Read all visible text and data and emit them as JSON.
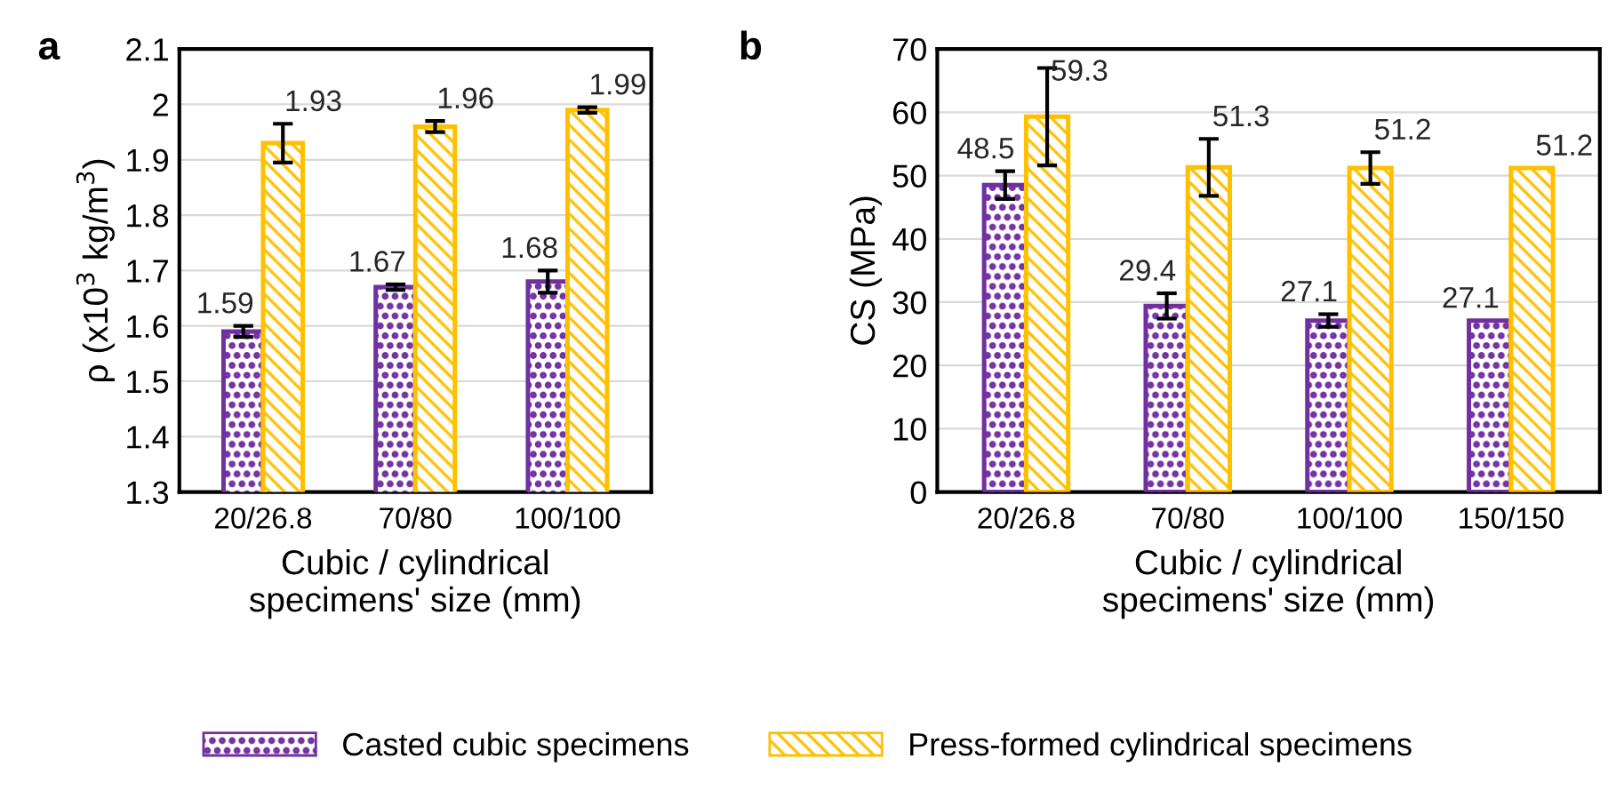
{
  "chart_data": [
    {
      "type": "bar",
      "title": "a",
      "xlabel": "Cubic / cylindrical\nspecimens' size (mm)",
      "ylabel": "ρ (x10$^{3}$ kg/m$^{3}$)",
      "categories": [
        "20/26.8",
        "70/80",
        "100/100"
      ],
      "ylim": [
        1.3,
        2.1
      ],
      "yticks": [
        1.3,
        1.4,
        1.5,
        1.6,
        1.7,
        1.8,
        1.9,
        2.0,
        2.1
      ],
      "grid": "y",
      "data_labels": true,
      "legend": "bottom",
      "series": [
        {
          "name": "Casted cubic specimens",
          "color": "#7030a0",
          "values": [
            1.59,
            1.67,
            1.68
          ],
          "errors": [
            0.01,
            0.005,
            0.02
          ]
        },
        {
          "name": "Press-formed cylindrical specimens",
          "color": "#ffc000",
          "values": [
            1.93,
            1.96,
            1.99
          ],
          "errors": [
            0.035,
            0.01,
            0.005
          ]
        }
      ]
    },
    {
      "type": "bar",
      "title": "b",
      "xlabel": "Cubic / cylindrical\nspecimens' size (mm)",
      "ylabel": "CS (MPa)",
      "categories": [
        "20/26.8",
        "70/80",
        "100/100",
        "150/150"
      ],
      "ylim": [
        0,
        70
      ],
      "yticks": [
        0,
        10,
        20,
        30,
        40,
        50,
        60,
        70
      ],
      "grid": "y",
      "data_labels": true,
      "legend": "bottom",
      "series": [
        {
          "name": "Casted cubic specimens",
          "color": "#7030a0",
          "values": [
            48.5,
            29.4,
            27.1,
            27.1
          ],
          "errors": [
            2.2,
            2.0,
            1.0,
            null
          ]
        },
        {
          "name": "Press-formed cylindrical specimens",
          "color": "#ffc000",
          "values": [
            59.3,
            51.3,
            51.2,
            51.2
          ],
          "errors": [
            7.7,
            4.5,
            2.5,
            null
          ]
        }
      ]
    }
  ]
}
